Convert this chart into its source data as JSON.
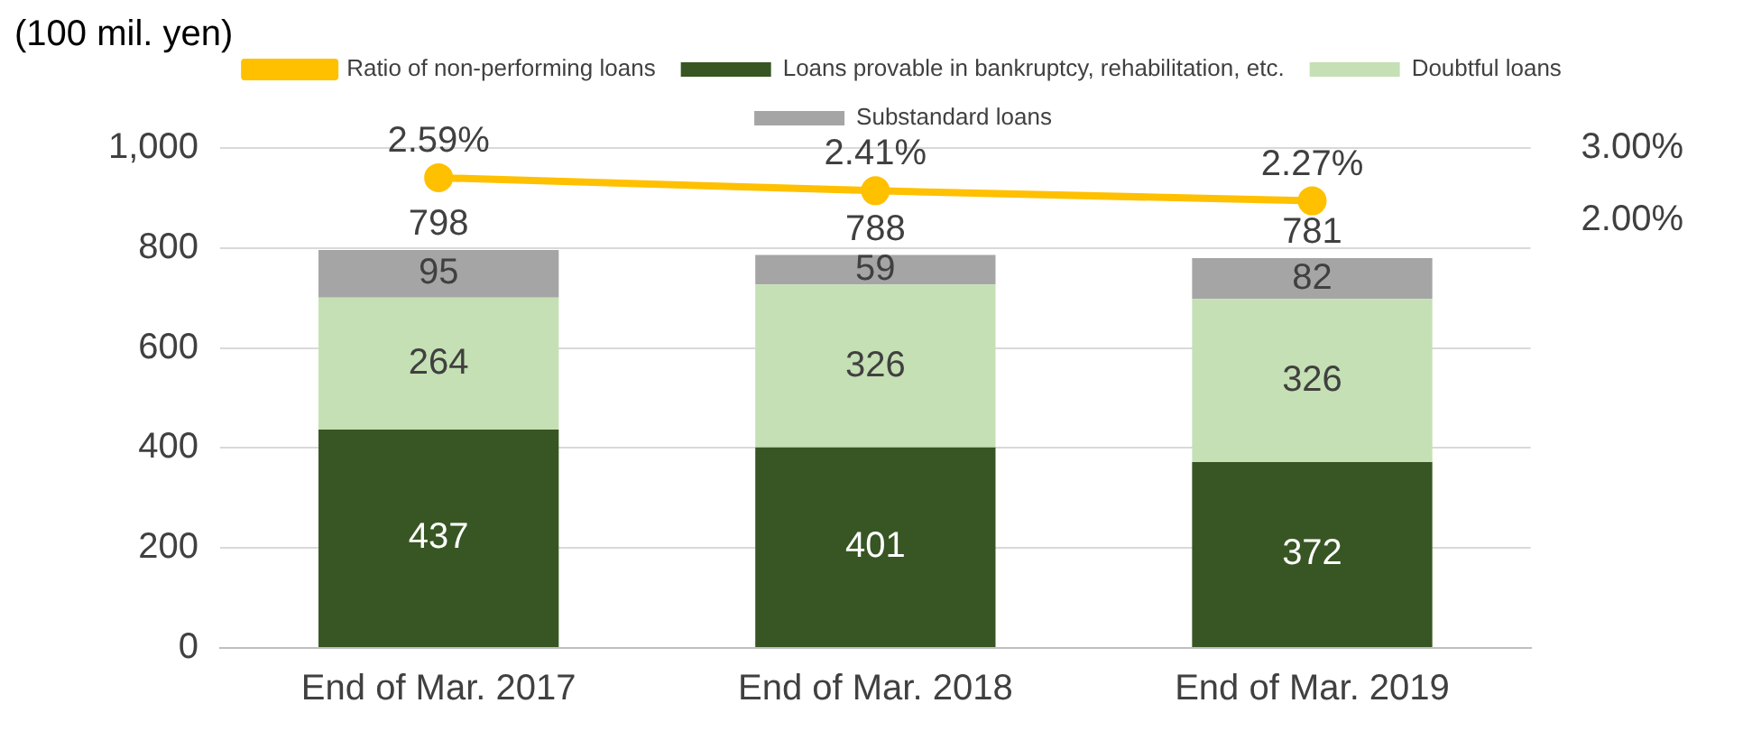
{
  "chart_data": {
    "type": "bar",
    "stacked": true,
    "ylabel": "(100 mil. yen)",
    "categories": [
      "End of Mar. 2017",
      "End of Mar. 2018",
      "End of Mar. 2019"
    ],
    "series": [
      {
        "name": "Loans provable in bankruptcy, rehabilitation, etc.",
        "color": "#375623",
        "values": [
          437,
          401,
          372
        ]
      },
      {
        "name": "Doubtful loans",
        "color": "#c5e0b4",
        "values": [
          264,
          326,
          326
        ]
      },
      {
        "name": "Substandard loans",
        "color": "#a5a5a5",
        "values": [
          95,
          59,
          82
        ]
      },
      {
        "name": "Ratio of non-performing loans",
        "type": "line",
        "axis": "y2",
        "color": "#ffc000",
        "marker": "circle",
        "values": [
          2.59,
          2.41,
          2.27
        ],
        "value_labels": [
          "2.59%",
          "2.41%",
          "2.27%"
        ]
      }
    ],
    "totals": [
      "798",
      "788",
      "781"
    ],
    "data_labels": true,
    "ylim": [
      0,
      1000
    ],
    "yticks": [
      0,
      200,
      400,
      600,
      800,
      {
        "value": 1000,
        "label": "1,000"
      }
    ],
    "y2lim": [
      -3.9,
      3
    ],
    "y2ticks": [
      {
        "value": 2,
        "label": "2.00%"
      },
      {
        "value": 3,
        "label": "3.00%"
      }
    ],
    "grid": "y",
    "legend": "top"
  }
}
